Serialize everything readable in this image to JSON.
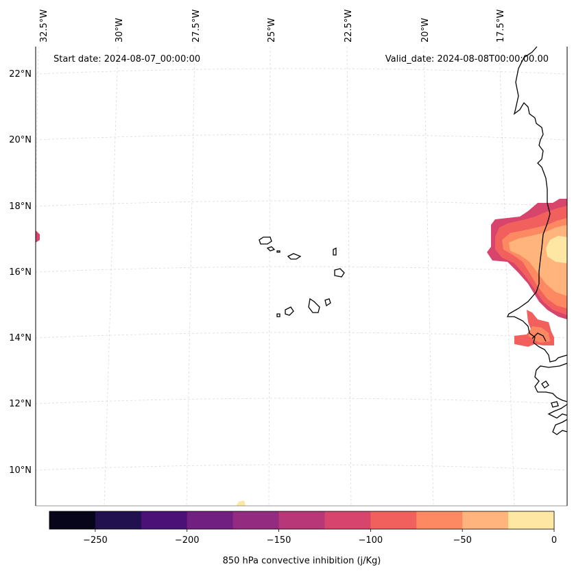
{
  "start_date_text": "Start date: 2024-08-07_00:00:00",
  "valid_date_text": "Valid_date: 2024-08-08T00:00:00.00",
  "lon_labels": [
    "32.5°W",
    "30°W",
    "27.5°W",
    "25°W",
    "22.5°W",
    "20°W",
    "17.5°W"
  ],
  "lat_labels": [
    "22°N",
    "20°N",
    "18°N",
    "16°N",
    "14°N",
    "12°N",
    "10°N"
  ],
  "colorbar": {
    "label": "850 hPa convective inhibition (j/Kg)",
    "tick_labels": [
      "−250",
      "−200",
      "−150",
      "−100",
      "−50",
      "0"
    ],
    "levels": [
      -275,
      -250,
      -225,
      -200,
      -175,
      -150,
      -125,
      -100,
      -75,
      -50,
      -25,
      0
    ],
    "colors": [
      "#06051a",
      "#21114e",
      "#4c1176",
      "#711f81",
      "#932b80",
      "#b73779",
      "#d8456c",
      "#f1605d",
      "#fc8961",
      "#feb47b",
      "#fde7a3"
    ]
  },
  "chart_data": {
    "type": "heatmap",
    "title": "850 hPa convective inhibition",
    "variable": "850 hPa convective inhibition",
    "units": "j/Kg",
    "start_date": "2024-08-07_00:00:00",
    "valid_date": "2024-08-08T00:00:00.00",
    "lon_ticks": [
      -32.5,
      -30,
      -27.5,
      -25,
      -22.5,
      -20,
      -17.5
    ],
    "lat_ticks": [
      22,
      20,
      18,
      16,
      14,
      12,
      10
    ],
    "colorbar_range": [
      -275,
      0
    ],
    "colorbar_ticks": [
      -250,
      -200,
      -150,
      -100,
      -50,
      0
    ]
  }
}
